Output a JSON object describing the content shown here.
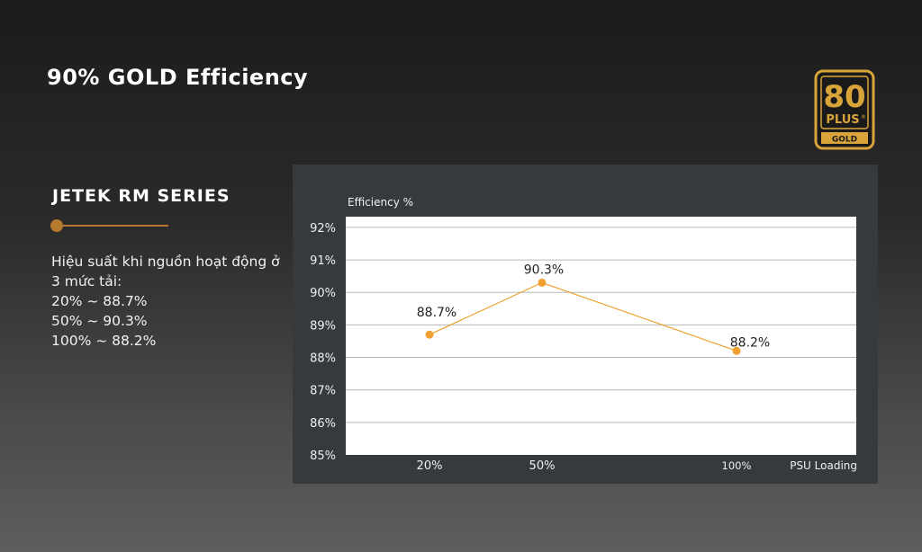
{
  "header": {
    "title": "90% GOLD Efficiency"
  },
  "badge": {
    "top": "80",
    "middle": "PLUS",
    "bottom": "GOLD",
    "trademark": "®",
    "gold_color": "#d9a43a"
  },
  "sidebar": {
    "series_title": "JETEK RM SERIES",
    "accent_color": "#b5792f",
    "lines": [
      "Hiệu suất khi nguồn hoạt động ở",
      "3 mức tải:",
      "20% ~ 88.7%",
      "50% ~ 90.3%",
      "100% ~ 88.2%"
    ]
  },
  "chart_data": {
    "type": "line",
    "ylabel": "Efficiency %",
    "xlabel": "PSU Loading",
    "categories": [
      "20%",
      "50%",
      "100%"
    ],
    "x": [
      20,
      50,
      100
    ],
    "series": [
      {
        "values": [
          88.7,
          90.3,
          88.2
        ],
        "data_labels": [
          "88.7%",
          "90.3%",
          "88.2%"
        ],
        "color": "#f0a030"
      }
    ],
    "ylim": [
      85,
      92
    ],
    "y_ticks": [
      85,
      86,
      87,
      88,
      89,
      90,
      91,
      92
    ],
    "y_tick_labels": [
      "85%",
      "86%",
      "87%",
      "88%",
      "89%",
      "90%",
      "91%",
      "92%"
    ],
    "grid": true,
    "plot_background": "#ffffff"
  }
}
